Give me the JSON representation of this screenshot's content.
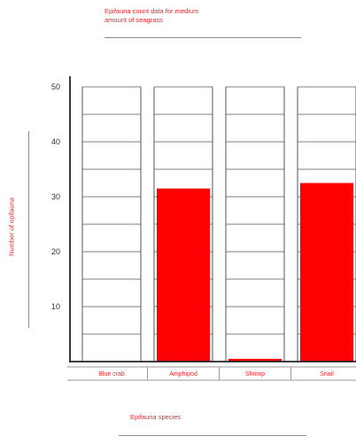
{
  "chart_data": {
    "type": "bar",
    "title": "Epifauna count data for medium amount of seagrass",
    "title_lines": [
      "Epifauna count data for medium",
      "amount of seagrass"
    ],
    "xlabel": "Epifauna species",
    "ylabel": "Number of epifauna",
    "categories": [
      "Blue crab",
      "Amphipod",
      "Shrimp",
      "Snail"
    ],
    "values": [
      0,
      31.5,
      0.5,
      32.5
    ],
    "ylim": [
      0,
      50
    ],
    "yticks": [
      "10",
      "20",
      "30",
      "40",
      "50"
    ],
    "grid": true,
    "legend": "none",
    "colors": {
      "bar": "#ff0000",
      "text": "#e8262b",
      "axis": "#222222",
      "grid": "#555555"
    }
  }
}
